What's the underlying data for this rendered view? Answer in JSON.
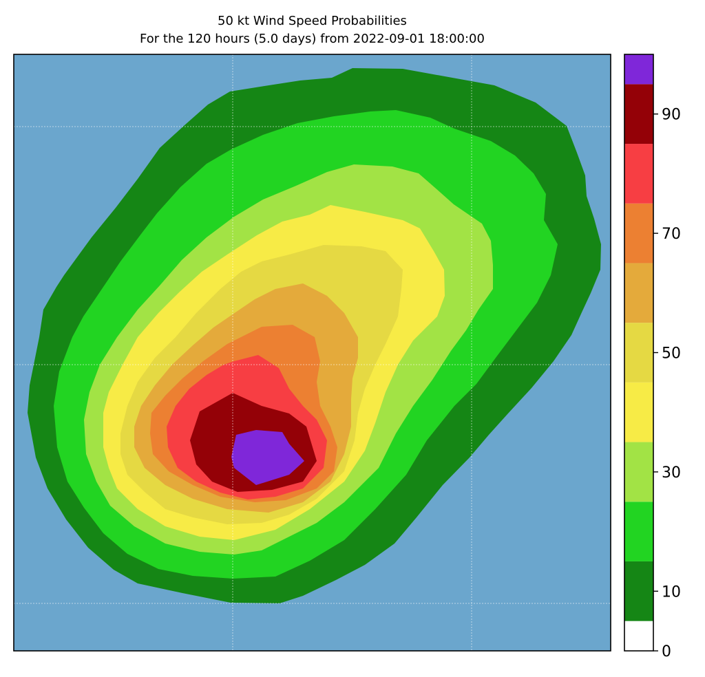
{
  "chart_data": {
    "type": "contour-map",
    "title": "50 kt Wind Speed Probabilities",
    "subtitle": "For the 120 hours (5.0 days) from 2022-09-01 18:00:00",
    "background_color": "#6ba6cd",
    "gridlines": true,
    "colorbar": {
      "placement": "right",
      "levels": [
        0,
        10,
        20,
        30,
        40,
        50,
        60,
        70,
        80,
        90,
        100
      ],
      "tick_labels": [
        "0",
        "10",
        "30",
        "50",
        "70",
        "90"
      ],
      "bins": [
        {
          "from": 0,
          "to": 5,
          "color": "#ffffff"
        },
        {
          "from": 5,
          "to": 15,
          "color": "#158615"
        },
        {
          "from": 15,
          "to": 25,
          "color": "#22d422"
        },
        {
          "from": 25,
          "to": 35,
          "color": "#a2e345"
        },
        {
          "from": 35,
          "to": 45,
          "color": "#f7eb46"
        },
        {
          "from": 45,
          "to": 55,
          "color": "#e5d943"
        },
        {
          "from": 55,
          "to": 65,
          "color": "#e4aa3b"
        },
        {
          "from": 65,
          "to": 75,
          "color": "#ec8032"
        },
        {
          "from": 75,
          "to": 85,
          "color": "#f73e43"
        },
        {
          "from": 85,
          "to": 95,
          "color": "#940107"
        },
        {
          "from": 95,
          "to": 100,
          "color": "#7f27d9"
        }
      ]
    },
    "contour_levels_shown": [
      {
        "min_probability": 5,
        "color": "#158615"
      },
      {
        "min_probability": 15,
        "color": "#22d422"
      },
      {
        "min_probability": 25,
        "color": "#a2e345"
      },
      {
        "min_probability": 35,
        "color": "#f7eb46"
      },
      {
        "min_probability": 45,
        "color": "#e5d943"
      },
      {
        "min_probability": 55,
        "color": "#e4aa3b"
      },
      {
        "min_probability": 65,
        "color": "#ec8032"
      },
      {
        "min_probability": 75,
        "color": "#f73e43"
      },
      {
        "min_probability": 85,
        "color": "#940107"
      },
      {
        "min_probability": 95,
        "color": "#7f27d9"
      }
    ]
  }
}
